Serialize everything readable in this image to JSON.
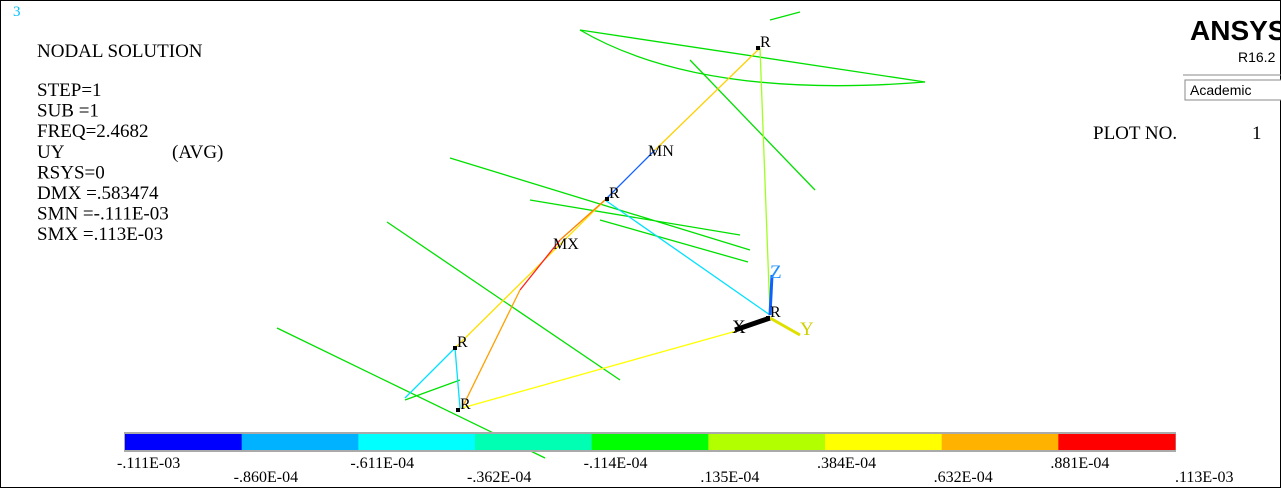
{
  "window_number": "3",
  "header": {
    "title": "NODAL SOLUTION",
    "rows": [
      [
        "STEP=1"
      ],
      [
        "SUB =1"
      ],
      [
        "FREQ=2.4682"
      ],
      [
        "UY",
        "(AVG)"
      ],
      [
        "RSYS=0"
      ],
      [
        "DMX =.583474"
      ],
      [
        "SMN =-.111E-03"
      ],
      [
        "SMX =.113E-03"
      ]
    ]
  },
  "logo": {
    "name": "ANSYS",
    "version": "R16.2",
    "edition": "Academic"
  },
  "plot_no": {
    "label": "PLOT NO.",
    "value": "1"
  },
  "markers": [
    {
      "label": "R"
    },
    {
      "label": "R"
    },
    {
      "label": "R"
    },
    {
      "label": "R"
    },
    {
      "label": "R"
    },
    {
      "label": "MN"
    },
    {
      "label": "MX"
    }
  ],
  "triad": {
    "x": "X",
    "y": "Y",
    "z": "Z"
  },
  "colorbar": {
    "colors": [
      "#0000ff",
      "#00b2ff",
      "#00ffff",
      "#00ffb2",
      "#00ff00",
      "#b2ff00",
      "#ffff00",
      "#ffb200",
      "#ff0000"
    ],
    "labels": [
      "-.111E-03",
      "-.860E-04",
      "-.611E-04",
      "-.362E-04",
      "-.114E-04",
      ".135E-04",
      ".384E-04",
      ".632E-04",
      ".881E-04",
      ".113E-03"
    ]
  }
}
